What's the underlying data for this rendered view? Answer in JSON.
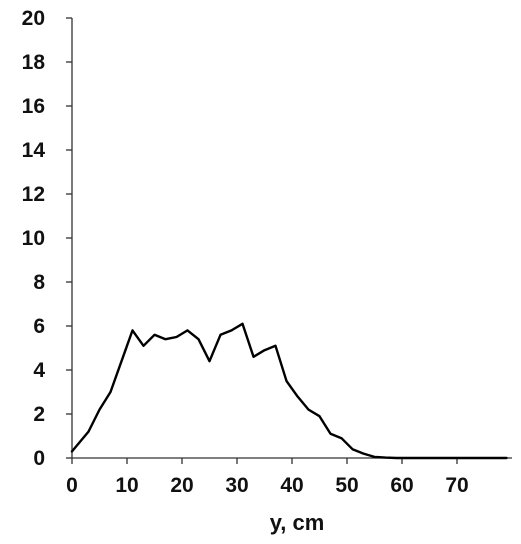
{
  "chart_data": {
    "type": "line",
    "title": "",
    "xlabel": "y, cm",
    "ylabel": "",
    "xlim": [
      0,
      80
    ],
    "ylim": [
      0,
      20
    ],
    "grid": false,
    "legend": "none",
    "x_ticks": [
      "0",
      "10",
      "20",
      "30",
      "40",
      "50",
      "60",
      "70"
    ],
    "y_ticks": [
      "0",
      "2",
      "4",
      "6",
      "8",
      "10",
      "12",
      "14",
      "16",
      "18",
      "20"
    ],
    "series": [
      {
        "color": "#000000",
        "x": [
          0,
          3,
          5,
          7,
          9,
          11,
          13,
          15,
          17,
          19,
          21,
          23,
          25,
          27,
          29,
          31,
          33,
          35,
          37,
          39,
          41,
          43,
          45,
          47,
          49,
          51,
          53,
          55,
          57,
          59,
          61,
          63,
          65,
          67,
          70,
          75,
          79
        ],
        "y": [
          0.3,
          1.2,
          2.2,
          3.0,
          4.4,
          5.8,
          5.1,
          5.6,
          5.4,
          5.5,
          5.8,
          5.4,
          4.4,
          5.6,
          5.8,
          6.1,
          4.6,
          4.9,
          5.1,
          3.5,
          2.8,
          2.2,
          1.9,
          1.1,
          0.9,
          0.4,
          0.2,
          0.05,
          0.02,
          0.0,
          0.0,
          0.0,
          0.0,
          0.0,
          0.0,
          0.0,
          0.0
        ]
      }
    ]
  }
}
